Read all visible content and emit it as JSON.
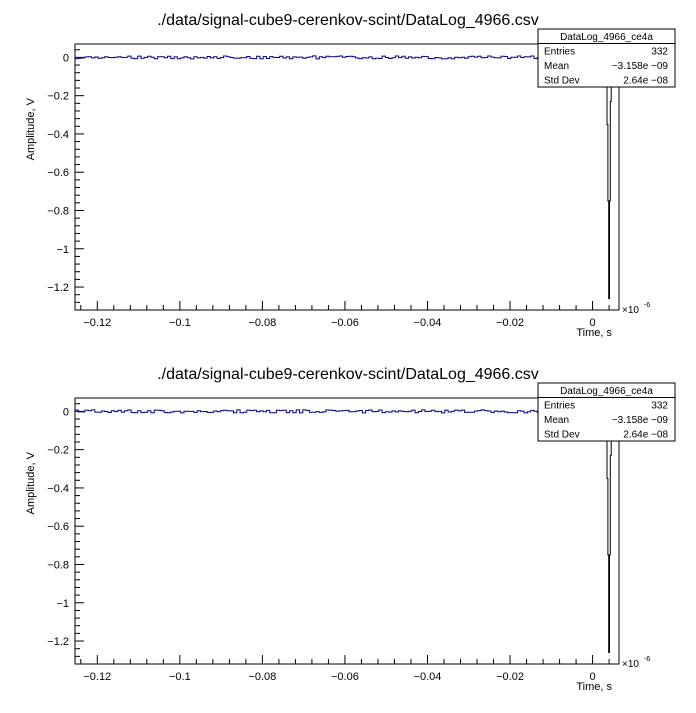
{
  "colors": {
    "trace": "#000080",
    "frame": "#000000",
    "background": "#ffffff"
  },
  "plots": [
    {
      "title": "./data/signal-cube9-cerenkov-scint/DataLog_4966.csv",
      "xlabel": "Time, s",
      "ylabel": "Amplitude, V",
      "x_exponent": "×10",
      "x_exponent_power": "-6",
      "x_ticks": [
        "−0.12",
        "−0.1",
        "−0.08",
        "−0.06",
        "−0.04",
        "−0.02",
        "0"
      ],
      "y_ticks": [
        "0",
        "−0.2",
        "−0.4",
        "−0.6",
        "−0.8",
        "−1",
        "−1.2"
      ],
      "stats": {
        "name": "DataLog_4966_ce4a",
        "rows": [
          {
            "label": "Entries",
            "value": "332"
          },
          {
            "label": "Mean",
            "value": "−3.158e −09"
          },
          {
            "label": "Std Dev",
            "value": "2.64e −08"
          }
        ]
      }
    },
    {
      "title": "./data/signal-cube9-cerenkov-scint/DataLog_4966.csv",
      "xlabel": "Time, s",
      "ylabel": "Amplitude, V",
      "x_exponent": "×10",
      "x_exponent_power": "-6",
      "x_ticks": [
        "−0.12",
        "−0.1",
        "−0.08",
        "−0.06",
        "−0.04",
        "−0.02",
        "0"
      ],
      "y_ticks": [
        "0",
        "−0.2",
        "−0.4",
        "−0.6",
        "−0.8",
        "−1",
        "−1.2"
      ],
      "stats": {
        "name": "DataLog_4966_ce4a",
        "rows": [
          {
            "label": "Entries",
            "value": "332"
          },
          {
            "label": "Mean",
            "value": "−3.158e −09"
          },
          {
            "label": "Std Dev",
            "value": "2.64e −08"
          }
        ]
      }
    }
  ],
  "chart_data": [
    {
      "type": "line",
      "title": "./data/signal-cube9-cerenkov-scint/DataLog_4966.csv",
      "xlabel": "Time, s",
      "ylabel": "Amplitude, V",
      "x_unit_multiplier": 1e-06,
      "xlim": [
        -0.1254,
        0.0064
      ],
      "ylim": [
        -1.32,
        0.07
      ],
      "x_ticks": [
        -0.12,
        -0.1,
        -0.08,
        -0.06,
        -0.04,
        -0.02,
        0
      ],
      "y_ticks": [
        0,
        -0.2,
        -0.4,
        -0.6,
        -0.8,
        -1,
        -1.2
      ],
      "baseline": {
        "x_range": [
          -0.1254,
          0.0064
        ],
        "level": 0.0,
        "noise": 0.008
      },
      "pulse": {
        "x": [
          0.0027,
          0.0035,
          0.0037,
          0.0039,
          0.0041,
          0.0043,
          0.0045,
          0.0047,
          0.0049
        ],
        "y": [
          -0.005,
          -0.35,
          -0.75,
          -1.26,
          -0.75,
          -0.23,
          0.03,
          -0.04,
          -0.01
        ]
      },
      "legend_placement": "top-right"
    },
    {
      "type": "line",
      "title": "./data/signal-cube9-cerenkov-scint/DataLog_4966.csv",
      "xlabel": "Time, s",
      "ylabel": "Amplitude, V",
      "x_unit_multiplier": 1e-06,
      "xlim": [
        -0.1254,
        0.0064
      ],
      "ylim": [
        -1.32,
        0.07
      ],
      "x_ticks": [
        -0.12,
        -0.1,
        -0.08,
        -0.06,
        -0.04,
        -0.02,
        0
      ],
      "y_ticks": [
        0,
        -0.2,
        -0.4,
        -0.6,
        -0.8,
        -1,
        -1.2
      ],
      "baseline": {
        "x_range": [
          -0.1254,
          0.0064
        ],
        "level": 0.0,
        "noise": 0.008
      },
      "pulse": {
        "x": [
          0.0027,
          0.0035,
          0.0037,
          0.0039,
          0.0041,
          0.0043,
          0.0045,
          0.0047,
          0.0049
        ],
        "y": [
          -0.005,
          -0.35,
          -0.75,
          -1.26,
          -0.75,
          -0.23,
          0.03,
          -0.04,
          -0.01
        ]
      },
      "legend_placement": "top-right"
    }
  ]
}
